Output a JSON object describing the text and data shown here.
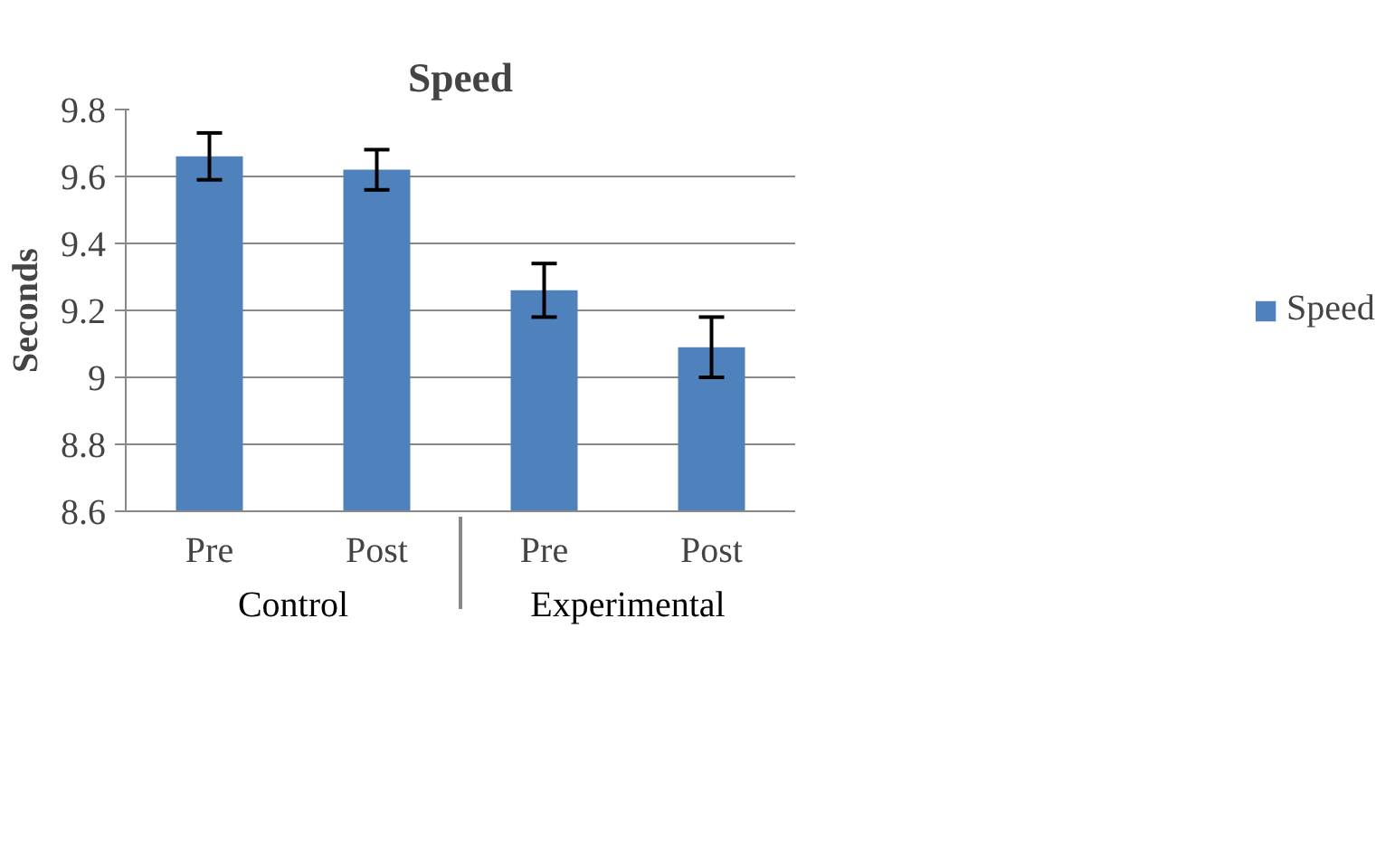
{
  "chart_data": {
    "type": "bar",
    "title": "Speed",
    "ylabel": "Seconds",
    "categories": [
      "Pre",
      "Post",
      "Pre",
      "Post"
    ],
    "annotations": [
      "Control",
      "Experimental"
    ],
    "series": [
      {
        "name": "Speed",
        "color": "#4f81bd",
        "values": [
          9.66,
          9.62,
          9.26,
          9.09
        ],
        "errors": [
          0.07,
          0.06,
          0.08,
          0.09
        ]
      }
    ],
    "ylim": [
      8.6,
      9.8
    ],
    "yticks": [
      8.6,
      8.8,
      9,
      9.2,
      9.4,
      9.6,
      9.8
    ],
    "grid": "y",
    "legend": "right"
  }
}
